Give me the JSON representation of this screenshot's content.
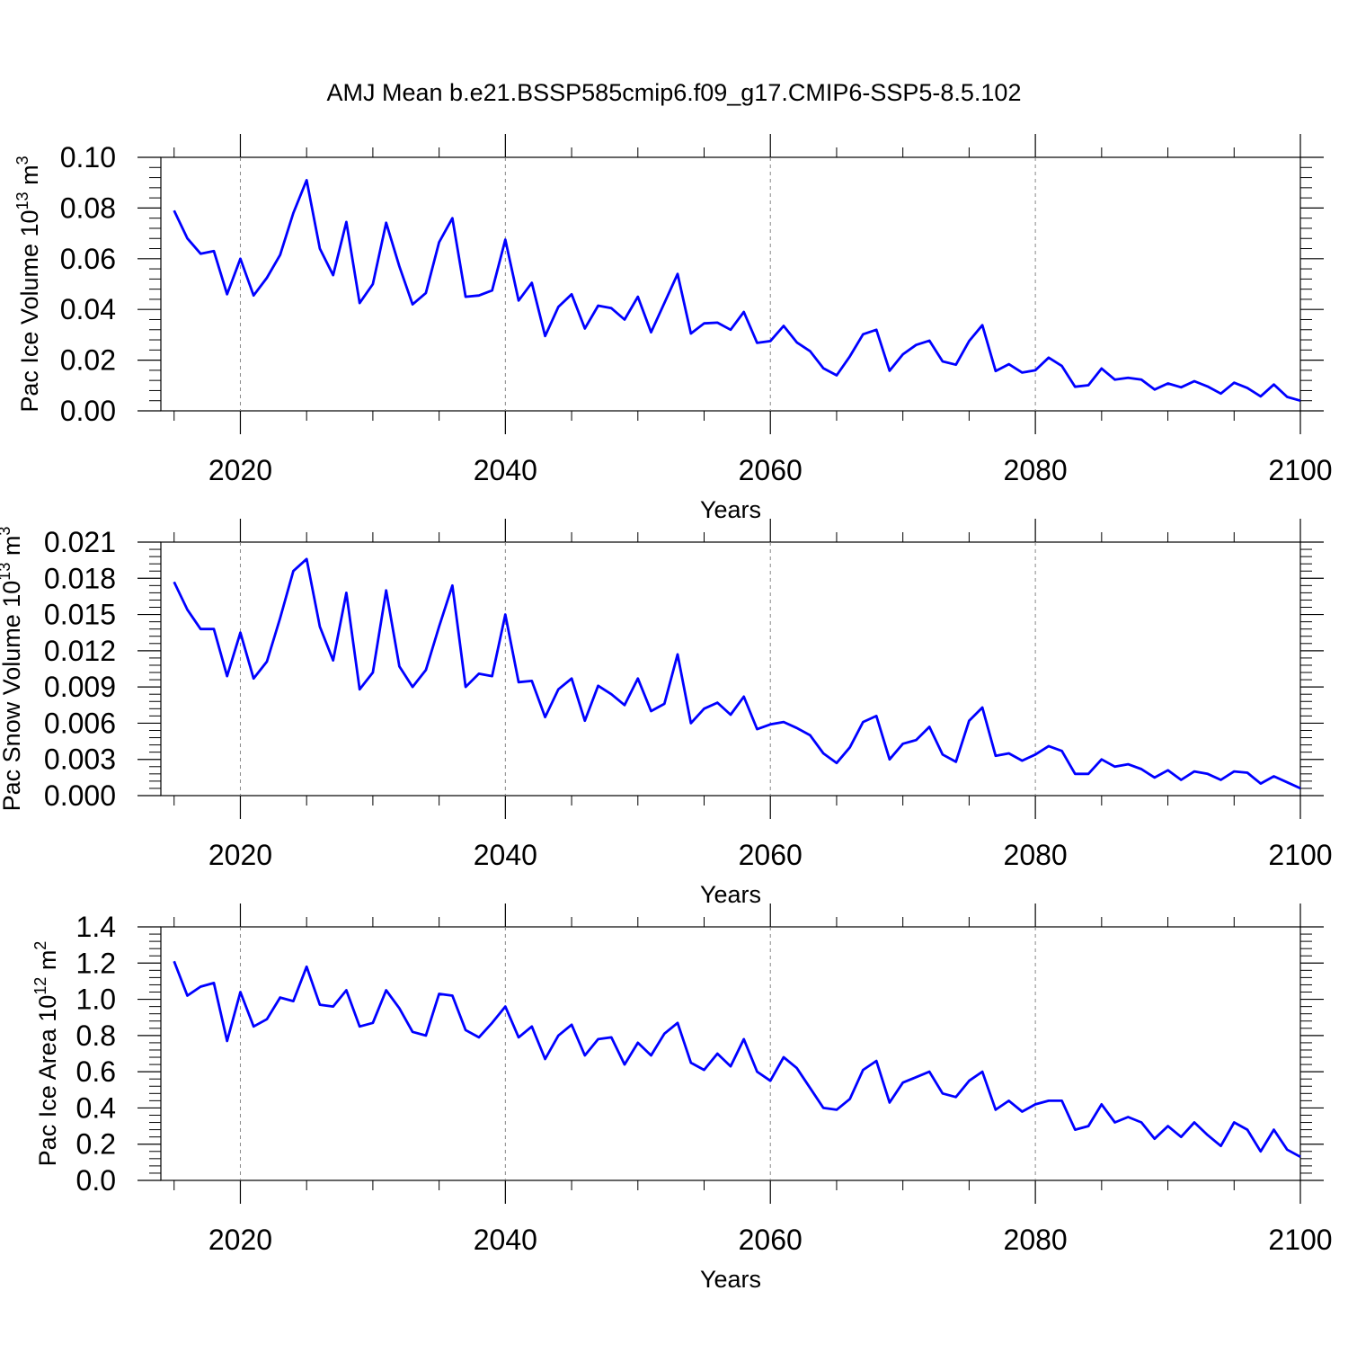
{
  "title": "AMJ Mean b.e21.BSSP585cmip6.f09_g17.CMIP6-SSP5-8.5.102",
  "line_color": "#0000ff",
  "chart_data": [
    {
      "type": "line",
      "title": "",
      "ylabel": {
        "prefix": "Pac Ice Volume 10",
        "exp": "13",
        "unit": " m",
        "unit_exp": "3"
      },
      "xlabel": "Years",
      "xlim": [
        2014,
        2100
      ],
      "ylim": [
        0,
        0.1
      ],
      "xticks": [
        2020,
        2040,
        2060,
        2080,
        2100
      ],
      "yticks": [
        "0.00",
        "0.02",
        "0.04",
        "0.06",
        "0.08",
        "0.10"
      ],
      "grid": "vertical dashed at major x ticks",
      "x_start": 2015,
      "values": [
        0.079,
        0.068,
        0.062,
        0.063,
        0.046,
        0.06,
        0.0455,
        0.0525,
        0.0615,
        0.078,
        0.091,
        0.064,
        0.0535,
        0.0745,
        0.0425,
        0.05,
        0.0742,
        0.057,
        0.042,
        0.0465,
        0.0665,
        0.076,
        0.045,
        0.0455,
        0.0475,
        0.0675,
        0.0435,
        0.0505,
        0.0295,
        0.041,
        0.046,
        0.0325,
        0.0415,
        0.0405,
        0.036,
        0.045,
        0.031,
        0.0425,
        0.054,
        0.0305,
        0.0345,
        0.0348,
        0.032,
        0.039,
        0.0268,
        0.0275,
        0.0335,
        0.027,
        0.0235,
        0.0168,
        0.014,
        0.0215,
        0.0302,
        0.032,
        0.0158,
        0.0223,
        0.026,
        0.0277,
        0.0195,
        0.0182,
        0.0275,
        0.0338,
        0.0157,
        0.0184,
        0.0151,
        0.016,
        0.021,
        0.0177,
        0.0095,
        0.0101,
        0.0167,
        0.0123,
        0.013,
        0.0123,
        0.0084,
        0.0108,
        0.0093,
        0.0117,
        0.0096,
        0.0068,
        0.0111,
        0.009,
        0.0057,
        0.0104,
        0.0055,
        0.004
      ]
    },
    {
      "type": "line",
      "title": "",
      "ylabel": {
        "prefix": "Pac Snow Volume 10",
        "exp": "13",
        "unit": " m",
        "unit_exp": "3"
      },
      "xlabel": "Years",
      "xlim": [
        2014,
        2100
      ],
      "ylim": [
        0,
        0.021
      ],
      "xticks": [
        2020,
        2040,
        2060,
        2080,
        2100
      ],
      "yticks": [
        "0.000",
        "0.003",
        "0.006",
        "0.009",
        "0.012",
        "0.015",
        "0.018",
        "0.021"
      ],
      "grid": "vertical dashed at major x ticks",
      "x_start": 2015,
      "values": [
        0.0177,
        0.0154,
        0.0138,
        0.0138,
        0.0099,
        0.0135,
        0.0097,
        0.0111,
        0.0147,
        0.0186,
        0.0196,
        0.014,
        0.0112,
        0.0168,
        0.0088,
        0.0102,
        0.017,
        0.0107,
        0.009,
        0.0104,
        0.014,
        0.0174,
        0.009,
        0.0101,
        0.0099,
        0.015,
        0.0094,
        0.0095,
        0.0065,
        0.0088,
        0.0097,
        0.0062,
        0.0091,
        0.0084,
        0.0075,
        0.0097,
        0.007,
        0.0076,
        0.0117,
        0.006,
        0.0072,
        0.0077,
        0.0067,
        0.0082,
        0.0055,
        0.0059,
        0.0061,
        0.0056,
        0.005,
        0.0035,
        0.0027,
        0.004,
        0.0061,
        0.0066,
        0.003,
        0.0043,
        0.0046,
        0.0057,
        0.0034,
        0.0028,
        0.0062,
        0.0073,
        0.0033,
        0.0035,
        0.0029,
        0.0034,
        0.0041,
        0.0037,
        0.0018,
        0.0018,
        0.003,
        0.0024,
        0.0026,
        0.0022,
        0.0015,
        0.0021,
        0.0013,
        0.002,
        0.0018,
        0.0013,
        0.002,
        0.0019,
        0.001,
        0.0016,
        0.0011,
        0.0006
      ]
    },
    {
      "type": "line",
      "title": "",
      "ylabel": {
        "prefix": "Pac Ice Area 10",
        "exp": "12",
        "unit": " m",
        "unit_exp": "2"
      },
      "xlabel": "Years",
      "xlim": [
        2014,
        2100
      ],
      "ylim": [
        0,
        1.4
      ],
      "xticks": [
        2020,
        2040,
        2060,
        2080,
        2100
      ],
      "yticks": [
        "0.0",
        "0.2",
        "0.4",
        "0.6",
        "0.8",
        "1.0",
        "1.2",
        "1.4"
      ],
      "grid": "vertical dashed at major x ticks",
      "x_start": 2015,
      "values": [
        1.21,
        1.02,
        1.07,
        1.09,
        0.77,
        1.04,
        0.85,
        0.89,
        1.01,
        0.99,
        1.18,
        0.97,
        0.96,
        1.05,
        0.85,
        0.87,
        1.05,
        0.95,
        0.82,
        0.8,
        1.03,
        1.02,
        0.83,
        0.79,
        0.87,
        0.96,
        0.79,
        0.85,
        0.67,
        0.8,
        0.86,
        0.69,
        0.78,
        0.79,
        0.64,
        0.76,
        0.69,
        0.81,
        0.87,
        0.65,
        0.61,
        0.7,
        0.63,
        0.78,
        0.6,
        0.55,
        0.68,
        0.62,
        0.51,
        0.4,
        0.39,
        0.45,
        0.61,
        0.66,
        0.43,
        0.54,
        0.57,
        0.6,
        0.48,
        0.46,
        0.55,
        0.6,
        0.39,
        0.44,
        0.38,
        0.42,
        0.44,
        0.44,
        0.28,
        0.3,
        0.42,
        0.32,
        0.35,
        0.32,
        0.23,
        0.3,
        0.24,
        0.32,
        0.25,
        0.19,
        0.32,
        0.28,
        0.16,
        0.28,
        0.17,
        0.13
      ]
    }
  ]
}
